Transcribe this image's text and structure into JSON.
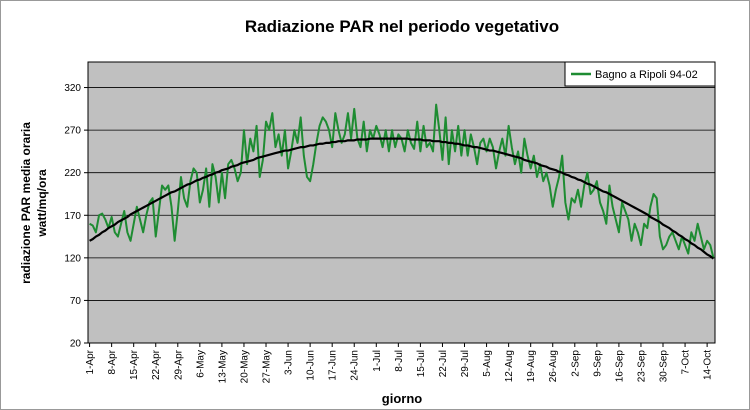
{
  "chart_data": {
    "type": "line",
    "title": "Radiazione PAR nel periodo vegetativo",
    "xlabel": "giorno",
    "ylabel": [
      "radiazione PAR media oraria",
      "watt/mq/ora"
    ],
    "ylim": [
      20,
      350
    ],
    "yticks": [
      20,
      70,
      120,
      170,
      220,
      270,
      320
    ],
    "grid": true,
    "legend": "top-right",
    "categories": [
      "1-Apr",
      null,
      null,
      null,
      null,
      null,
      null,
      "8-Apr",
      null,
      null,
      null,
      null,
      null,
      null,
      "15-Apr",
      null,
      null,
      null,
      null,
      null,
      null,
      "22-Apr",
      null,
      null,
      null,
      null,
      null,
      null,
      "29-Apr",
      null,
      null,
      null,
      null,
      null,
      null,
      "6-May",
      null,
      null,
      null,
      null,
      null,
      null,
      "13-May",
      null,
      null,
      null,
      null,
      null,
      null,
      "20-May",
      null,
      null,
      null,
      null,
      null,
      null,
      "27-May",
      null,
      null,
      null,
      null,
      null,
      null,
      "3-Jun",
      null,
      null,
      null,
      null,
      null,
      null,
      "10-Jun",
      null,
      null,
      null,
      null,
      null,
      null,
      "17-Jun",
      null,
      null,
      null,
      null,
      null,
      null,
      "24-Jun",
      null,
      null,
      null,
      null,
      null,
      null,
      "1-Jul",
      null,
      null,
      null,
      null,
      null,
      null,
      "8-Jul",
      null,
      null,
      null,
      null,
      null,
      null,
      "15-Jul",
      null,
      null,
      null,
      null,
      null,
      null,
      "22-Jul",
      null,
      null,
      null,
      null,
      null,
      null,
      "29-Jul",
      null,
      null,
      null,
      null,
      null,
      null,
      "5-Aug",
      null,
      null,
      null,
      null,
      null,
      null,
      "12-Aug",
      null,
      null,
      null,
      null,
      null,
      null,
      "19-Aug",
      null,
      null,
      null,
      null,
      null,
      null,
      "26-Aug",
      null,
      null,
      null,
      null,
      null,
      null,
      "2-Sep",
      null,
      null,
      null,
      null,
      null,
      null,
      "9-Sep",
      null,
      null,
      null,
      null,
      null,
      null,
      "16-Sep",
      null,
      null,
      null,
      null,
      null,
      null,
      "23-Sep",
      null,
      null,
      null,
      null,
      null,
      null,
      "30-Sep",
      null,
      null,
      null,
      null,
      null,
      null,
      "7-Oct",
      null,
      null,
      null,
      null,
      null,
      null,
      "14-Oct",
      null,
      null
    ],
    "series": [
      {
        "name": "Bagno a Ripoli 94-02",
        "color": "#1e8c32",
        "values": [
          160,
          158,
          150,
          170,
          172,
          165,
          155,
          168,
          150,
          145,
          160,
          175,
          150,
          140,
          160,
          180,
          165,
          150,
          170,
          185,
          190,
          145,
          175,
          205,
          200,
          205,
          180,
          140,
          175,
          215,
          190,
          180,
          210,
          225,
          220,
          185,
          200,
          225,
          180,
          230,
          215,
          185,
          220,
          190,
          230,
          235,
          225,
          210,
          220,
          270,
          230,
          260,
          245,
          275,
          215,
          235,
          280,
          270,
          290,
          250,
          265,
          240,
          270,
          225,
          245,
          270,
          255,
          285,
          240,
          215,
          210,
          230,
          255,
          275,
          285,
          280,
          270,
          250,
          290,
          270,
          255,
          265,
          290,
          260,
          295,
          260,
          250,
          280,
          245,
          270,
          260,
          275,
          265,
          250,
          270,
          245,
          270,
          250,
          265,
          260,
          245,
          270,
          255,
          248,
          280,
          245,
          275,
          250,
          255,
          245,
          300,
          270,
          235,
          285,
          230,
          270,
          245,
          275,
          240,
          270,
          240,
          265,
          250,
          230,
          255,
          260,
          245,
          260,
          250,
          225,
          245,
          260,
          240,
          275,
          250,
          230,
          245,
          220,
          260,
          240,
          225,
          240,
          215,
          230,
          210,
          220,
          205,
          180,
          200,
          215,
          240,
          185,
          165,
          190,
          185,
          200,
          180,
          205,
          220,
          195,
          200,
          210,
          185,
          175,
          160,
          205,
          180,
          165,
          150,
          185,
          175,
          165,
          140,
          160,
          150,
          135,
          160,
          155,
          180,
          195,
          190,
          145,
          130,
          135,
          145,
          150,
          140,
          130,
          145,
          135,
          125,
          150,
          140,
          160,
          145,
          130,
          140,
          135,
          120
        ]
      }
    ],
    "trendline": {
      "color": "#000000",
      "values": [
        140,
        142,
        145,
        147,
        150,
        152,
        155,
        157,
        159,
        162,
        164,
        166,
        168,
        171,
        173,
        175,
        177,
        179,
        181,
        183,
        185,
        187,
        189,
        191,
        193,
        195,
        197,
        198,
        200,
        202,
        204,
        206,
        207,
        209,
        211,
        212,
        214,
        215,
        217,
        218,
        220,
        221,
        223,
        224,
        225,
        227,
        228,
        229,
        231,
        232,
        233,
        234,
        235,
        237,
        238,
        239,
        240,
        241,
        242,
        243,
        244,
        245,
        246,
        246,
        247,
        248,
        249,
        250,
        250,
        251,
        252,
        252,
        253,
        254,
        254,
        255,
        255,
        256,
        256,
        257,
        257,
        257,
        258,
        258,
        258,
        259,
        259,
        259,
        259,
        260,
        260,
        260,
        260,
        260,
        260,
        260,
        260,
        260,
        260,
        260,
        260,
        260,
        259,
        259,
        259,
        259,
        258,
        258,
        258,
        257,
        257,
        257,
        256,
        256,
        255,
        255,
        254,
        254,
        253,
        252,
        252,
        251,
        250,
        250,
        249,
        248,
        247,
        246,
        246,
        245,
        244,
        243,
        242,
        241,
        240,
        239,
        238,
        237,
        235,
        234,
        233,
        232,
        231,
        229,
        228,
        227,
        225,
        224,
        223,
        221,
        220,
        218,
        217,
        215,
        214,
        212,
        211,
        209,
        207,
        206,
        204,
        202,
        200,
        198,
        197,
        195,
        193,
        191,
        189,
        187,
        185,
        183,
        181,
        179,
        177,
        175,
        173,
        171,
        168,
        166,
        164,
        162,
        159,
        157,
        155,
        152,
        150,
        147,
        145,
        142,
        140,
        137,
        135,
        132,
        130,
        127,
        124,
        122,
        119
      ]
    }
  }
}
